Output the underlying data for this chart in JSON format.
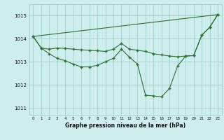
{
  "background_color": "#ceeeed",
  "grid_color": "#93cbc8",
  "line_color": "#2d6e35",
  "title": "Graphe pression niveau de la mer (hPa)",
  "xlim": [
    -0.5,
    23.5
  ],
  "ylim": [
    1010.7,
    1015.5
  ],
  "yticks": [
    1011,
    1012,
    1013,
    1014,
    1015
  ],
  "xticks": [
    0,
    1,
    2,
    3,
    4,
    5,
    6,
    7,
    8,
    9,
    10,
    11,
    12,
    13,
    14,
    15,
    16,
    17,
    18,
    19,
    20,
    21,
    22,
    23
  ],
  "series1_x": [
    0,
    1,
    2,
    3,
    4,
    5,
    6,
    7,
    8,
    9,
    10,
    11,
    12,
    13,
    14,
    15,
    16,
    17,
    18,
    19,
    20,
    21,
    22,
    23
  ],
  "series1_y": [
    1014.1,
    1013.6,
    1013.55,
    1013.6,
    1013.58,
    1013.55,
    1013.52,
    1013.5,
    1013.48,
    1013.45,
    1013.55,
    1013.8,
    1013.55,
    1013.5,
    1013.45,
    1013.35,
    1013.3,
    1013.25,
    1013.22,
    1013.25,
    1013.27,
    1014.15,
    1014.5,
    1015.05
  ],
  "series2_x": [
    0,
    1,
    2,
    3,
    4,
    5,
    6,
    7,
    8,
    9,
    10,
    11,
    12,
    13,
    14,
    15,
    16,
    17,
    18,
    19,
    20,
    21,
    22,
    23
  ],
  "series2_y": [
    1014.1,
    1013.6,
    1013.35,
    1013.15,
    1013.05,
    1012.9,
    1012.78,
    1012.78,
    1012.85,
    1013.0,
    1013.15,
    1013.55,
    1013.2,
    1012.9,
    1011.55,
    1011.52,
    1011.48,
    1011.85,
    1012.82,
    1013.25,
    1013.27,
    1014.15,
    1014.5,
    1015.05
  ],
  "series3_x": [
    0,
    23
  ],
  "series3_y": [
    1014.1,
    1015.05
  ],
  "marker_s2_x": [
    0,
    1,
    2,
    3,
    4,
    5,
    6,
    7,
    8,
    9,
    10,
    11,
    12,
    13,
    14,
    15,
    16,
    17,
    18,
    19,
    20,
    21,
    22,
    23
  ],
  "marker_s2_y": [
    1014.1,
    1013.6,
    1013.35,
    1013.15,
    1013.05,
    1012.9,
    1012.78,
    1012.78,
    1012.85,
    1013.0,
    1013.15,
    1013.55,
    1013.2,
    1012.9,
    1011.55,
    1011.52,
    1011.48,
    1011.85,
    1012.82,
    1013.25,
    1013.27,
    1014.15,
    1014.5,
    1015.05
  ]
}
